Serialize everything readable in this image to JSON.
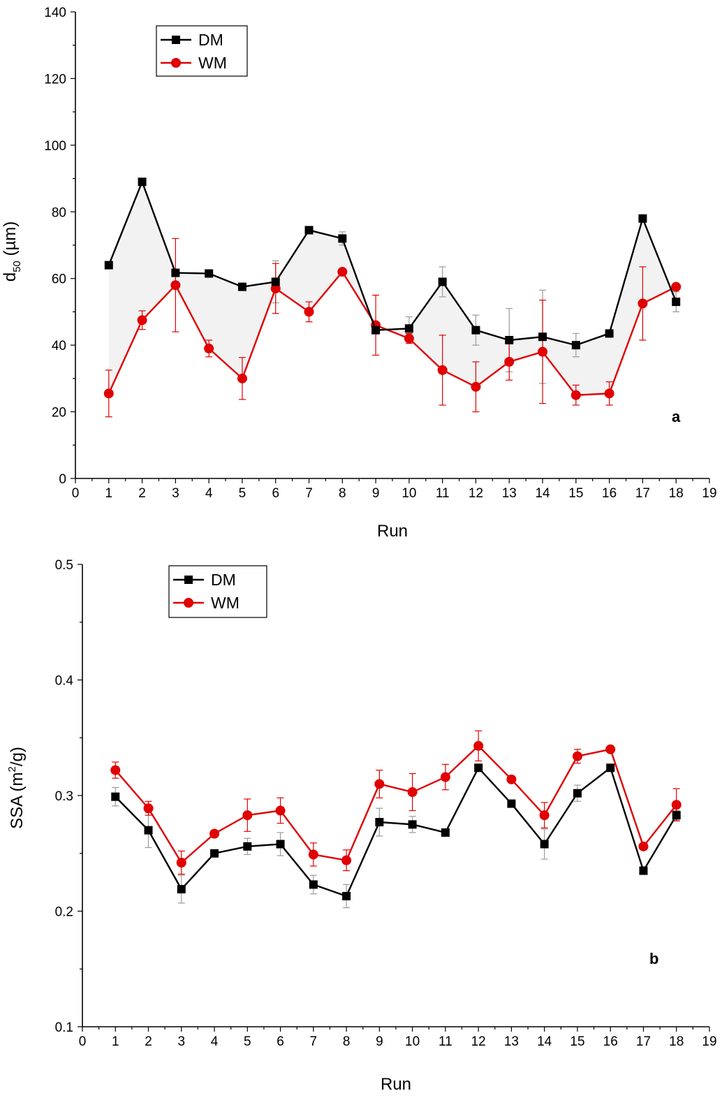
{
  "chart_data": [
    {
      "type": "line",
      "panel_label": "a",
      "xlabel": "Run",
      "ylabel_main": "d",
      "ylabel_sub": "50",
      "ylabel_rest": " (µm)",
      "xlim": [
        0,
        19
      ],
      "ylim": [
        0,
        140
      ],
      "xticks": [
        0,
        1,
        2,
        3,
        4,
        5,
        6,
        7,
        8,
        9,
        10,
        11,
        12,
        13,
        14,
        15,
        16,
        17,
        18,
        19
      ],
      "yticks": [
        0,
        20,
        40,
        60,
        80,
        100,
        120,
        140
      ],
      "x": [
        1,
        2,
        3,
        4,
        5,
        6,
        7,
        8,
        9,
        10,
        11,
        12,
        13,
        14,
        15,
        16,
        17,
        18
      ],
      "legend_position": "top-left",
      "shade_between_series": true,
      "series": [
        {
          "name": "DM",
          "color": "#000000",
          "marker": "square",
          "values": [
            64,
            89,
            61.7,
            61.5,
            57.5,
            59,
            74.5,
            72,
            44.5,
            45,
            59,
            44.5,
            41.5,
            42.5,
            40,
            43.5,
            78,
            53
          ],
          "errors": [
            0,
            0,
            0,
            0,
            0,
            6.3,
            0,
            2,
            0,
            3.5,
            4.5,
            4.5,
            9.5,
            14,
            3.5,
            0,
            0,
            3
          ]
        },
        {
          "name": "WM",
          "color": "#e00000",
          "marker": "circle",
          "values": [
            25.5,
            47.5,
            58,
            39,
            30,
            57,
            50,
            62,
            46,
            42,
            32.5,
            27.5,
            35,
            38,
            25,
            25.5,
            52.5,
            57.5
          ],
          "errors": [
            7,
            2.8,
            14,
            2.5,
            6.3,
            7.5,
            3,
            0,
            9,
            1.5,
            10.5,
            7.5,
            5.5,
            15.5,
            3,
            3.5,
            11,
            0
          ]
        }
      ]
    },
    {
      "type": "line",
      "panel_label": "b",
      "xlabel": "Run",
      "ylabel_main": "SSA (m",
      "ylabel_sup": "2",
      "ylabel_rest": "/g)",
      "xlim": [
        0,
        19
      ],
      "ylim": [
        0.1,
        0.5
      ],
      "xticks": [
        0,
        1,
        2,
        3,
        4,
        5,
        6,
        7,
        8,
        9,
        10,
        11,
        12,
        13,
        14,
        15,
        16,
        17,
        18,
        19
      ],
      "yticks": [
        0.1,
        0.2,
        0.3,
        0.4,
        0.5
      ],
      "x": [
        1,
        2,
        3,
        4,
        5,
        6,
        7,
        8,
        9,
        10,
        11,
        12,
        13,
        14,
        15,
        16,
        17,
        18
      ],
      "legend_position": "top-left",
      "shade_between_series": false,
      "series": [
        {
          "name": "DM",
          "color": "#000000",
          "marker": "square",
          "values": [
            0.299,
            0.27,
            0.219,
            0.25,
            0.256,
            0.258,
            0.223,
            0.213,
            0.277,
            0.275,
            0.268,
            0.324,
            0.293,
            0.258,
            0.302,
            0.324,
            0.235,
            0.283
          ],
          "errors": [
            0.008,
            0.015,
            0.012,
            0,
            0.007,
            0.01,
            0.008,
            0.01,
            0.012,
            0.007,
            0,
            0,
            0,
            0.013,
            0.007,
            0,
            0,
            0.004
          ]
        },
        {
          "name": "WM",
          "color": "#e00000",
          "marker": "circle",
          "values": [
            0.322,
            0.289,
            0.242,
            0.267,
            0.283,
            0.287,
            0.249,
            0.244,
            0.31,
            0.303,
            0.316,
            0.343,
            0.314,
            0.283,
            0.334,
            0.34,
            0.256,
            0.292
          ],
          "errors": [
            0.007,
            0.006,
            0.01,
            0,
            0.014,
            0.011,
            0.01,
            0.009,
            0.012,
            0.016,
            0.011,
            0.013,
            0,
            0.011,
            0.006,
            0,
            0,
            0.014
          ]
        }
      ]
    }
  ]
}
